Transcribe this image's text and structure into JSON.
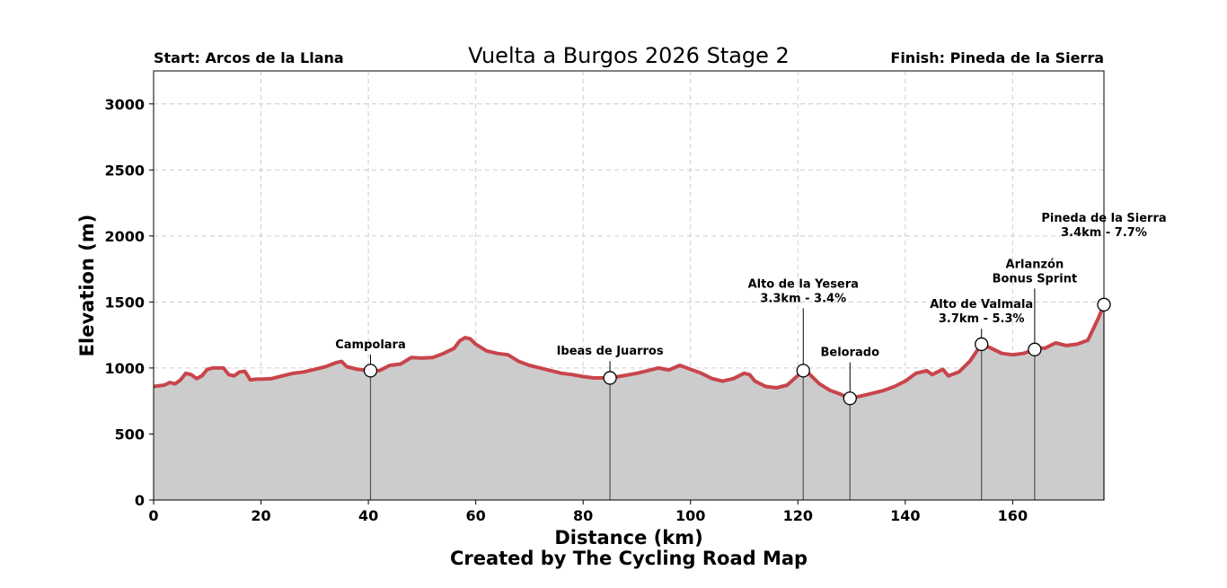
{
  "chart_data": {
    "type": "area",
    "title": "Vuelta a Burgos 2026 Stage 2",
    "start_label": "Start: Arcos de la Llana",
    "finish_label": "Finish: Pineda de la Sierra",
    "xlabel": "Distance (km)",
    "ylabel": "Elevation (m)",
    "credit": "Created by The Cycling Road Map",
    "xlim": [
      0,
      177
    ],
    "ylim": [
      0,
      3250
    ],
    "xticks": [
      0,
      20,
      40,
      60,
      80,
      100,
      120,
      140,
      160
    ],
    "yticks": [
      0,
      500,
      1000,
      1500,
      2000,
      2500,
      3000
    ],
    "grid": true,
    "colors": {
      "line": "#c8454b",
      "fill": "#cccccc",
      "marker_stem": "#555555"
    },
    "profile": {
      "x": [
        0,
        2,
        3,
        4,
        5,
        6,
        7,
        8,
        9,
        10,
        11,
        12,
        13,
        14,
        15,
        16,
        17,
        18,
        19,
        20,
        22,
        24,
        26,
        28,
        30,
        32,
        34,
        35,
        36,
        38,
        40.4,
        42,
        44,
        46,
        48,
        50,
        52,
        54,
        56,
        57,
        58,
        59,
        60,
        62,
        64,
        66,
        68,
        70,
        72,
        74,
        76,
        78,
        80,
        82,
        85,
        88,
        90,
        92,
        94,
        96,
        98,
        100,
        102,
        104,
        106,
        108,
        110,
        111,
        112,
        114,
        116,
        118,
        121,
        122,
        124,
        126,
        128,
        129.7,
        132,
        134,
        136,
        138,
        140,
        142,
        144,
        145,
        146,
        147,
        148,
        150,
        152,
        154.2,
        156,
        158,
        160,
        162,
        164.1,
        165,
        166,
        168,
        170,
        172,
        174,
        176,
        177
      ],
      "y": [
        860,
        870,
        890,
        880,
        910,
        960,
        950,
        920,
        940,
        990,
        1000,
        1000,
        1000,
        950,
        940,
        970,
        975,
        910,
        915,
        915,
        920,
        940,
        960,
        970,
        990,
        1010,
        1040,
        1050,
        1010,
        990,
        980,
        980,
        1020,
        1030,
        1080,
        1075,
        1080,
        1110,
        1150,
        1205,
        1230,
        1220,
        1180,
        1130,
        1110,
        1100,
        1050,
        1020,
        1000,
        980,
        960,
        950,
        935,
        925,
        925,
        945,
        960,
        980,
        1000,
        985,
        1020,
        990,
        960,
        920,
        900,
        920,
        960,
        950,
        900,
        860,
        850,
        870,
        980,
        960,
        880,
        830,
        800,
        770,
        790,
        810,
        830,
        860,
        900,
        960,
        980,
        950,
        970,
        990,
        940,
        970,
        1050,
        1180,
        1150,
        1110,
        1100,
        1110,
        1140,
        1150,
        1150,
        1190,
        1170,
        1180,
        1210,
        1380,
        1480
      ]
    },
    "annotations": [
      {
        "x": 40.4,
        "y": 980,
        "label_lines": [
          "Campolara"
        ],
        "label_y": 1150
      },
      {
        "x": 85,
        "y": 925,
        "label_lines": [
          "Ibeas de Juarros"
        ],
        "label_y": 1100
      },
      {
        "x": 121,
        "y": 980,
        "label_lines": [
          "Alto de la Yesera",
          "3.3km - 3.4%"
        ],
        "label_y": 1500
      },
      {
        "x": 129.7,
        "y": 770,
        "label_lines": [
          "Belorado"
        ],
        "label_y": 1090
      },
      {
        "x": 154.2,
        "y": 1180,
        "label_lines": [
          "Alto de Valmala",
          "3.7km - 5.3%"
        ],
        "label_y": 1345
      },
      {
        "x": 164.1,
        "y": 1140,
        "label_lines": [
          "Arlanzón",
          "Bonus Sprint"
        ],
        "label_y": 1650
      },
      {
        "x": 177,
        "y": 1480,
        "label_lines": [
          "Pineda de la Sierra",
          "3.4km - 7.7%"
        ],
        "label_y": 2000
      }
    ]
  }
}
